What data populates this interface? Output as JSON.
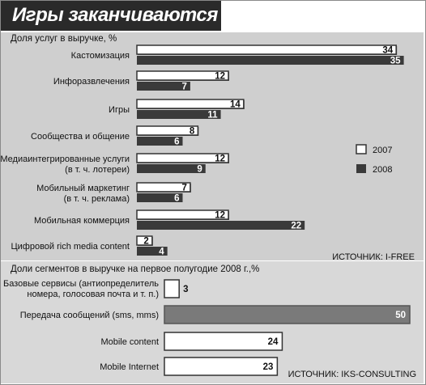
{
  "header": {
    "title": "Игры заканчиваются"
  },
  "chart_data": [
    {
      "type": "bar",
      "title": "Доля услуг в выручке, %",
      "categories": [
        [
          "Кастомизация"
        ],
        [
          "Инфоразвлечения"
        ],
        [
          "Игры"
        ],
        [
          "Сообщества и общение"
        ],
        [
          "Медиаинтегрированные услуги",
          "(в т. ч. лотереи)"
        ],
        [
          "Мобильный маркетинг",
          "(в т. ч. реклама)"
        ],
        [
          "Мобильная коммерция"
        ],
        [
          "Цифровой rich media content"
        ]
      ],
      "series": [
        {
          "name": "2007",
          "values": [
            34,
            12,
            14,
            8,
            12,
            7,
            12,
            2
          ]
        },
        {
          "name": "2008",
          "values": [
            35,
            7,
            11,
            6,
            9,
            6,
            22,
            4
          ]
        }
      ],
      "xlim": [
        0,
        36
      ],
      "source": "ИСТОЧНИК: I-FREE",
      "colors": {
        "2007": "#ffffff",
        "2008": "#3a3a3a"
      }
    },
    {
      "type": "bar",
      "title": "Доли сегментов в выручке на первое полугодие 2008 г.,%",
      "categories": [
        [
          "Базовые сервисы (антиопределитель",
          "номера, голосовая почта и т. п.)"
        ],
        [
          "Передача сообщений (sms, mms)"
        ],
        [
          "Mobile content"
        ],
        [
          "Mobile Internet"
        ]
      ],
      "values": [
        3,
        50,
        24,
        23
      ],
      "xlim": [
        0,
        50
      ],
      "source": "ИСТОЧНИК: IKS-CONSULTING",
      "colors": {
        "highlight": "#7a7a7a",
        "normal": "#ffffff"
      }
    }
  ]
}
